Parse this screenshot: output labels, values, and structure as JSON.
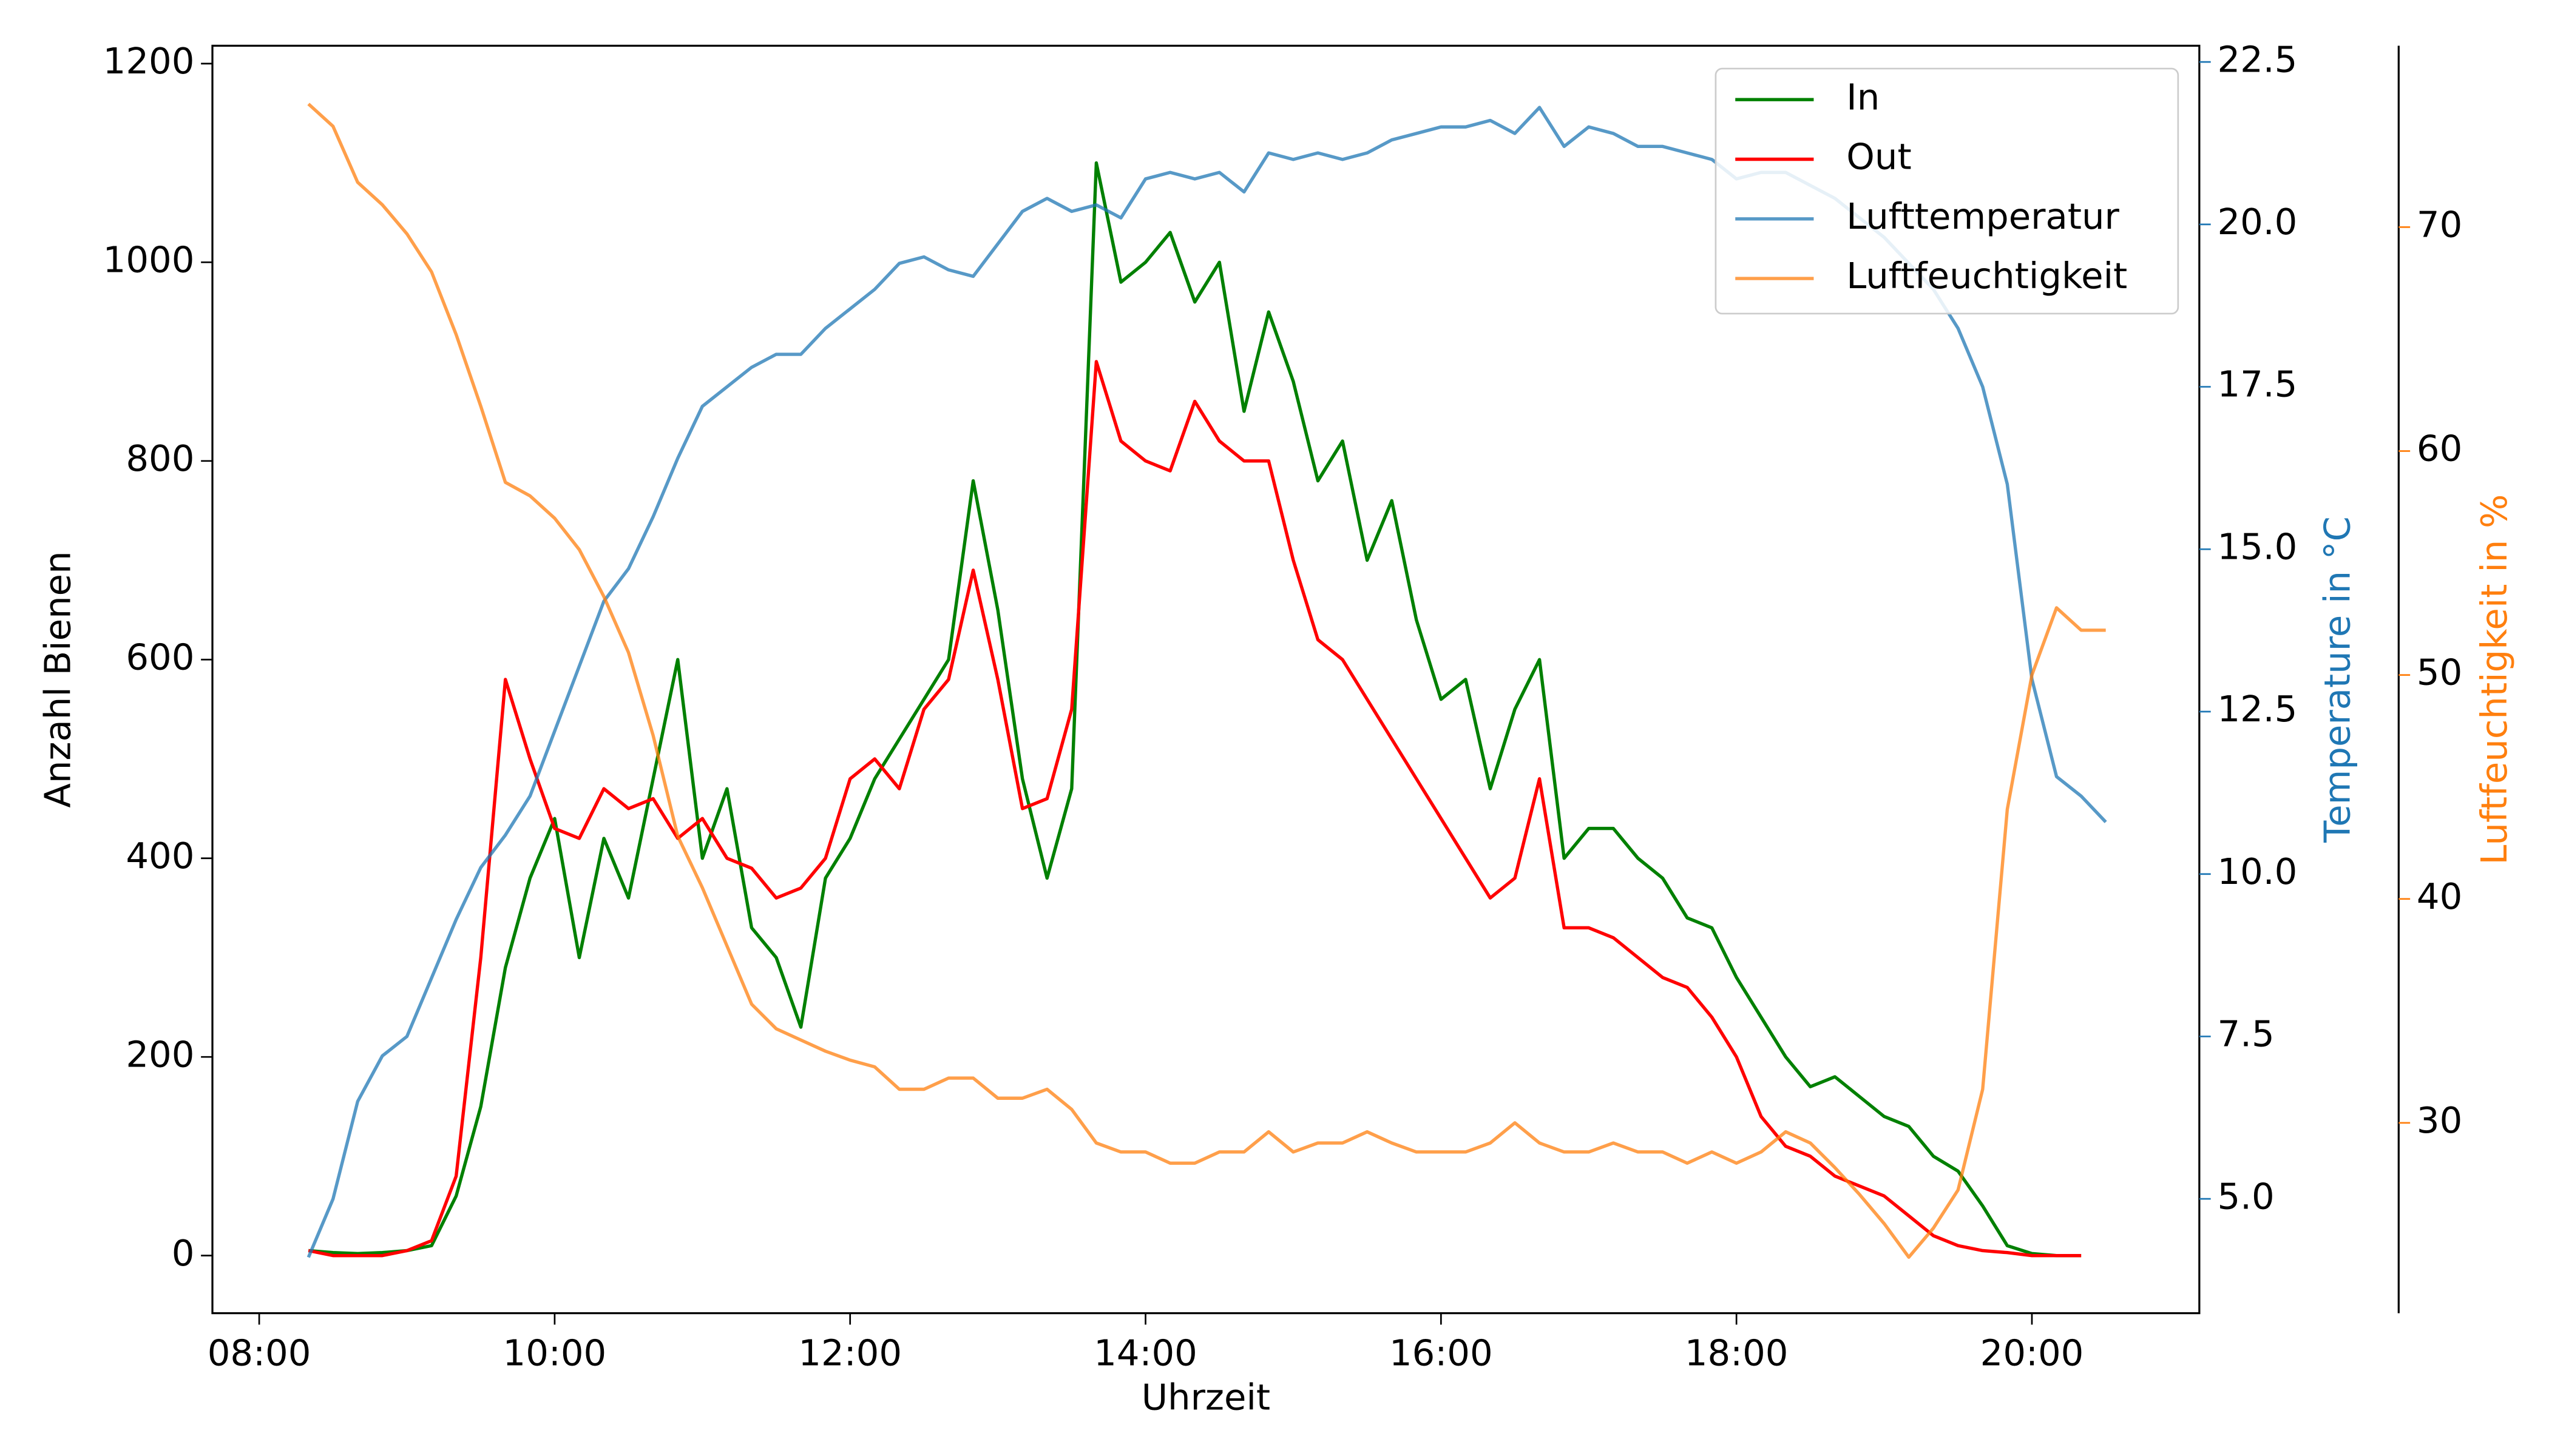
{
  "chart_data": {
    "type": "line",
    "xlabel": "Uhrzeit",
    "ylabel": "Anzahl Bienen",
    "y2label": "Temperature in °C",
    "y3label": "Luftfeuchtigkeit in %",
    "x": [
      "08:20",
      "08:30",
      "08:40",
      "08:50",
      "09:00",
      "09:10",
      "09:20",
      "09:30",
      "09:40",
      "09:50",
      "10:00",
      "10:10",
      "10:20",
      "10:30",
      "10:40",
      "10:50",
      "11:00",
      "11:10",
      "11:20",
      "11:30",
      "11:40",
      "11:50",
      "12:00",
      "12:10",
      "12:20",
      "12:30",
      "12:40",
      "12:50",
      "13:00",
      "13:10",
      "13:20",
      "13:30",
      "13:40",
      "13:50",
      "14:00",
      "14:10",
      "14:20",
      "14:30",
      "14:40",
      "14:50",
      "15:00",
      "15:10",
      "15:20",
      "15:30",
      "15:40",
      "15:50",
      "16:00",
      "16:10",
      "16:20",
      "16:30",
      "16:40",
      "16:50",
      "17:00",
      "17:10",
      "17:20",
      "17:30",
      "17:40",
      "17:50",
      "18:00",
      "18:10",
      "18:20",
      "18:30",
      "18:40",
      "18:50",
      "19:00",
      "19:10",
      "19:20",
      "19:30",
      "19:40",
      "19:50",
      "20:00",
      "20:10",
      "20:20",
      "20:30"
    ],
    "xlim": [
      "07:41",
      "21:08"
    ],
    "xticks": [
      "08:00",
      "10:00",
      "12:00",
      "14:00",
      "16:00",
      "18:00",
      "20:00"
    ],
    "ylim": [
      -58,
      1218
    ],
    "yticks": [
      0,
      200,
      400,
      600,
      800,
      1000,
      1200
    ],
    "y2lim": [
      3.24,
      22.75
    ],
    "y2ticks": [
      {
        "value": 5,
        "label": "5.0"
      },
      7.5,
      {
        "value": 10,
        "label": "10.0"
      },
      12.5,
      {
        "value": 15,
        "label": "15.0"
      },
      17.5,
      {
        "value": 20,
        "label": "20.0"
      },
      22.5
    ],
    "y3lim": [
      21.5,
      78.1
    ],
    "y3ticks": [
      30,
      40,
      50,
      60,
      70
    ],
    "legend": "upper right",
    "series": [
      {
        "name": "In",
        "color": "#008000",
        "axis": "y",
        "values": [
          5,
          3,
          2,
          3,
          5,
          10,
          60,
          150,
          290,
          380,
          440,
          300,
          420,
          360,
          480,
          600,
          400,
          470,
          330,
          300,
          230,
          380,
          420,
          480,
          520,
          560,
          600,
          780,
          650,
          480,
          380,
          470,
          1100,
          980,
          1000,
          1030,
          960,
          1000,
          850,
          950,
          880,
          780,
          820,
          700,
          760,
          640,
          560,
          580,
          470,
          550,
          600,
          400,
          430,
          430,
          400,
          380,
          340,
          330,
          280,
          240,
          200,
          170,
          180,
          160,
          140,
          130,
          100,
          85,
          50,
          10,
          2,
          0,
          0,
          null
        ]
      },
      {
        "name": "Out",
        "color": "#ff0000",
        "axis": "y",
        "values": [
          5,
          0,
          0,
          0,
          5,
          15,
          80,
          300,
          580,
          500,
          430,
          420,
          470,
          450,
          460,
          420,
          440,
          400,
          390,
          360,
          370,
          400,
          480,
          500,
          470,
          550,
          580,
          690,
          580,
          450,
          460,
          550,
          900,
          820,
          800,
          790,
          860,
          820,
          800,
          800,
          700,
          620,
          600,
          560,
          520,
          480,
          440,
          400,
          360,
          380,
          480,
          330,
          330,
          320,
          300,
          280,
          270,
          240,
          200,
          140,
          110,
          100,
          80,
          70,
          60,
          40,
          20,
          10,
          5,
          3,
          0,
          0,
          0,
          null
        ]
      },
      {
        "name": "Lufttemperatur",
        "color": "#1f77b4",
        "axis": "y2",
        "values": [
          4.1,
          5.0,
          6.5,
          7.2,
          7.5,
          8.4,
          9.3,
          10.1,
          10.6,
          11.2,
          12.2,
          13.2,
          14.2,
          14.7,
          15.5,
          16.4,
          17.2,
          17.5,
          17.8,
          18.0,
          18.0,
          18.4,
          18.7,
          19.0,
          19.4,
          19.5,
          19.3,
          19.2,
          19.7,
          20.2,
          20.4,
          20.2,
          20.3,
          20.1,
          20.7,
          20.8,
          20.7,
          20.8,
          20.5,
          21.1,
          21.0,
          21.1,
          21.0,
          21.1,
          21.3,
          21.4,
          21.5,
          21.5,
          21.6,
          21.4,
          21.8,
          21.2,
          21.5,
          21.4,
          21.2,
          21.2,
          21.1,
          21.0,
          20.7,
          20.8,
          20.8,
          20.6,
          20.4,
          20.1,
          19.8,
          19.4,
          19.0,
          18.4,
          17.5,
          16.0,
          13.0,
          11.5,
          11.2,
          10.8
        ]
      },
      {
        "name": "Luftfeuchtigkeit",
        "color": "#ff7f0e",
        "axis": "y3",
        "values": [
          75.5,
          74.5,
          72.0,
          71.0,
          69.7,
          68.0,
          65.2,
          62.0,
          58.6,
          58.0,
          57.0,
          55.6,
          53.5,
          51.0,
          47.3,
          42.8,
          40.5,
          37.9,
          35.3,
          34.2,
          33.7,
          33.2,
          32.8,
          32.5,
          31.5,
          31.5,
          32.0,
          32.0,
          31.1,
          31.1,
          31.5,
          30.6,
          29.1,
          28.7,
          28.7,
          28.2,
          28.2,
          28.7,
          28.7,
          29.6,
          28.7,
          29.1,
          29.1,
          29.6,
          29.1,
          28.7,
          28.7,
          28.7,
          29.1,
          30.0,
          29.1,
          28.7,
          28.7,
          29.1,
          28.7,
          28.7,
          28.2,
          28.7,
          28.2,
          28.7,
          29.6,
          29.1,
          28.0,
          26.8,
          25.5,
          24.0,
          25.3,
          27.0,
          31.5,
          44.0,
          50.0,
          53.0,
          52.0,
          52.0
        ]
      }
    ]
  }
}
